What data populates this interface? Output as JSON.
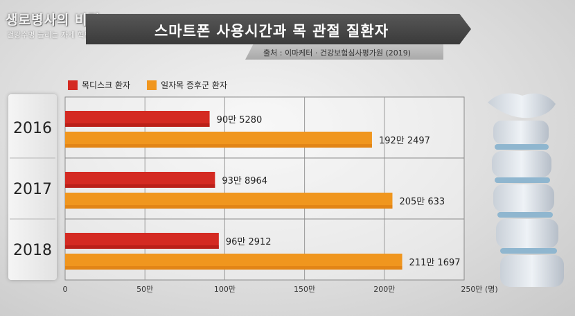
{
  "logo": {
    "main": "생로병사의 비밀",
    "sub": "건강수명 늘리는 자세 혁명"
  },
  "title": "스마트폰 사용시간과 목 관절 질환자",
  "source": "출처 : 이마케터  ·  건강보험심사평가원 (2019)",
  "colors": {
    "series_1": "#d42a22",
    "series_2": "#f0961e"
  },
  "chart_data": {
    "type": "bar",
    "orientation": "horizontal",
    "categories": [
      "2016",
      "2017",
      "2018"
    ],
    "series": [
      {
        "name": "목디스크 환자",
        "values": [
          905280,
          938964,
          962912
        ],
        "labels": [
          "90만 5280",
          "93만 8964",
          "96만 2912"
        ]
      },
      {
        "name": "일자목 증후군 환자",
        "values": [
          1922497,
          2050633,
          2111697
        ],
        "labels": [
          "192만 2497",
          "205만 633",
          "211만 1697"
        ]
      }
    ],
    "xlim": [
      0,
      2500000
    ],
    "xticks": [
      "0",
      "50만",
      "100만",
      "150만",
      "200만",
      "250만 (명)"
    ],
    "xtick_values": [
      0,
      500000,
      1000000,
      1500000,
      2000000,
      2500000
    ],
    "grid": true,
    "legend": "top-left"
  }
}
